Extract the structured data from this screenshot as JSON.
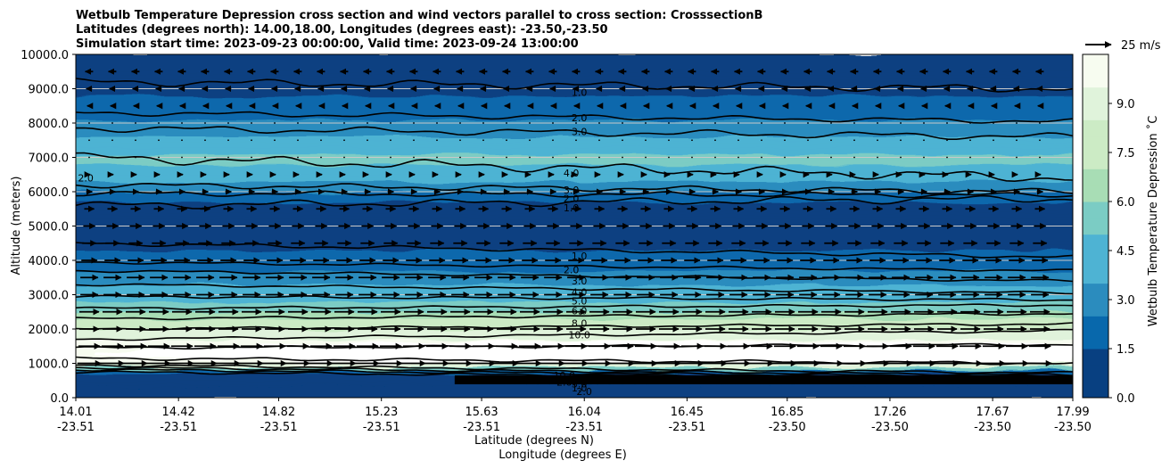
{
  "chart_data": {
    "type": "contour",
    "title_lines": [
      "Wetbulb Temperature Depression cross section and wind vectors parallel to cross section: CrosssectionB",
      "Latitudes (degrees north): 14.00,18.00, Longitudes (degrees east): -23.50,-23.50",
      "Simulation start time: 2023-09-23 00:00:00, Valid time: 2023-09-24 13:00:00"
    ],
    "ylabel": "Altitude (meters)",
    "xlabel_primary": "Latitude (degrees N)",
    "xlabel_secondary": "Longitude (degrees E)",
    "ylim": [
      0,
      10000
    ],
    "xlim": [
      14.01,
      17.99
    ],
    "y_ticks": [
      "0.0",
      "1000.0",
      "2000.0",
      "3000.0",
      "4000.0",
      "5000.0",
      "6000.0",
      "7000.0",
      "8000.0",
      "9000.0",
      "10000.0"
    ],
    "x_ticks": [
      {
        "lat": "14.01",
        "lon": "-23.51"
      },
      {
        "lat": "14.42",
        "lon": "-23.51"
      },
      {
        "lat": "14.82",
        "lon": "-23.51"
      },
      {
        "lat": "15.23",
        "lon": "-23.51"
      },
      {
        "lat": "15.63",
        "lon": "-23.51"
      },
      {
        "lat": "16.04",
        "lon": "-23.51"
      },
      {
        "lat": "16.45",
        "lon": "-23.51"
      },
      {
        "lat": "16.85",
        "lon": "-23.50"
      },
      {
        "lat": "17.26",
        "lon": "-23.50"
      },
      {
        "lat": "17.67",
        "lon": "-23.50"
      },
      {
        "lat": "17.99",
        "lon": "-23.50"
      }
    ],
    "colorbar": {
      "label": "Wetbulb Temperature Depression ˚C",
      "range": [
        0,
        10.5
      ],
      "tick_labels": [
        "0.0",
        "1.5",
        "3.0",
        "4.5",
        "6.0",
        "7.5",
        "9.0"
      ],
      "tick_values": [
        0,
        1.5,
        3.0,
        4.5,
        6.0,
        7.5,
        9.0
      ]
    },
    "wind_key": "25 m/s",
    "contour_levels": [
      1.0,
      2.0,
      3.0,
      4.0,
      5.0,
      6.0,
      8.0,
      10.0
    ],
    "contour_label_texts": [
      "1.0",
      "2.0",
      "3.0",
      "4.0",
      "3.0",
      "2.0",
      "1.0",
      "1.0",
      "2.0",
      "3.0",
      "4.0",
      "5.0",
      "6.0",
      "8.0",
      "10.0",
      "10.0",
      "2.0",
      "3.0",
      "1.0",
      "2.0",
      "2.0"
    ],
    "depression_profile": [
      {
        "alt": 0,
        "value": 0.8
      },
      {
        "alt": 700,
        "value": 0.3
      },
      {
        "alt": 1000,
        "value": 10.5
      },
      {
        "alt": 1600,
        "value": 10.0
      },
      {
        "alt": 2000,
        "value": 8.0
      },
      {
        "alt": 2500,
        "value": 6.0
      },
      {
        "alt": 3000,
        "value": 4.0
      },
      {
        "alt": 3500,
        "value": 3.0
      },
      {
        "alt": 4000,
        "value": 1.5
      },
      {
        "alt": 5000,
        "value": 0.5
      },
      {
        "alt": 5700,
        "value": 1.0
      },
      {
        "alt": 6300,
        "value": 3.5
      },
      {
        "alt": 7000,
        "value": 5.0
      },
      {
        "alt": 7800,
        "value": 3.0
      },
      {
        "alt": 8500,
        "value": 1.5
      },
      {
        "alt": 9500,
        "value": 0.5
      },
      {
        "alt": 10000,
        "value": 0.5
      }
    ],
    "wind_profile": [
      {
        "alt": 1000,
        "u": 12
      },
      {
        "alt": 1500,
        "u": 11
      },
      {
        "alt": 2000,
        "u": 10
      },
      {
        "alt": 2500,
        "u": 10
      },
      {
        "alt": 3000,
        "u": 9
      },
      {
        "alt": 3500,
        "u": 9
      },
      {
        "alt": 4000,
        "u": 8
      },
      {
        "alt": 4500,
        "u": 7
      },
      {
        "alt": 5000,
        "u": 6
      },
      {
        "alt": 5500,
        "u": 5
      },
      {
        "alt": 6000,
        "u": 3
      },
      {
        "alt": 6500,
        "u": 1
      },
      {
        "alt": 7000,
        "u": 0.5
      },
      {
        "alt": 7500,
        "u": 0.3
      },
      {
        "alt": 8000,
        "u": 0.2
      },
      {
        "alt": 8500,
        "u": -2
      },
      {
        "alt": 9000,
        "u": -3
      },
      {
        "alt": 9500,
        "u": -4
      }
    ],
    "colors": {
      "background": "#ffffff",
      "grid": "#c8c8c8",
      "dry_core": "#ffffff",
      "contour": "#000000",
      "palette": [
        "#084081",
        "#0868ac",
        "#2b8cbe",
        "#4eb3d3",
        "#7bccc4",
        "#a8ddb5",
        "#ccebc5",
        "#e0f3db",
        "#f7fcf0"
      ]
    }
  }
}
